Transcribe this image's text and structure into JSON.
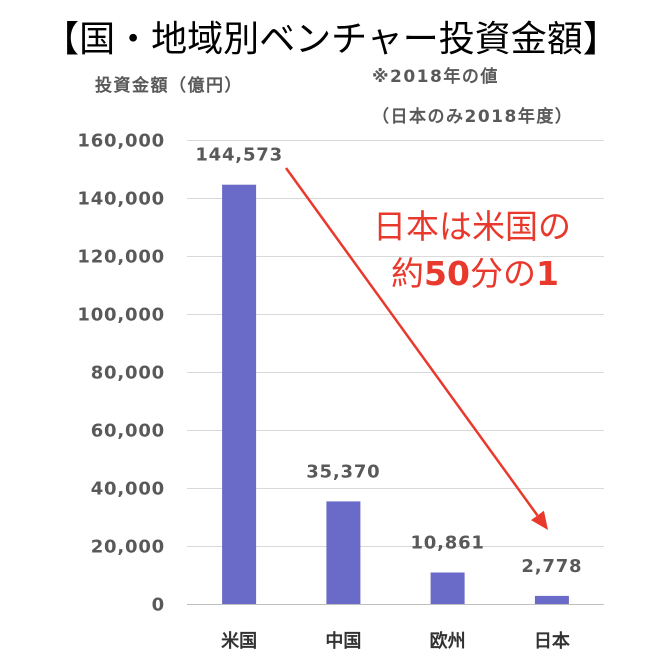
{
  "chart_data": {
    "type": "bar",
    "title": "【国・地域別ベンチャー投資金額】",
    "ylabel": "投資金額（億円）",
    "notes": [
      "※2018年の値",
      "（日本のみ2018年度）"
    ],
    "categories": [
      "米国",
      "中国",
      "欧州",
      "日本"
    ],
    "values": [
      144573,
      35370,
      10861,
      2778
    ],
    "data_labels": [
      "144,573",
      "35,370",
      "10,861",
      "2,778"
    ],
    "ylim": [
      0,
      160000
    ],
    "yticks": [
      0,
      20000,
      40000,
      60000,
      80000,
      100000,
      120000,
      140000,
      160000
    ],
    "ytick_labels": [
      "0",
      "20,000",
      "40,000",
      "60,000",
      "80,000",
      "100,000",
      "120,000",
      "140,000",
      "160,000"
    ],
    "grid": true,
    "annotation": {
      "lines": [
        "日本は米国の",
        "約50分の1"
      ]
    },
    "colors": {
      "bar": "#6a6ac8",
      "annotation": "#e8392c",
      "gridline": "#d9d9d9",
      "axis_line": "#bfbfbf",
      "axis_text": "#595959",
      "category_text": "#333333",
      "title": "#000000"
    }
  }
}
